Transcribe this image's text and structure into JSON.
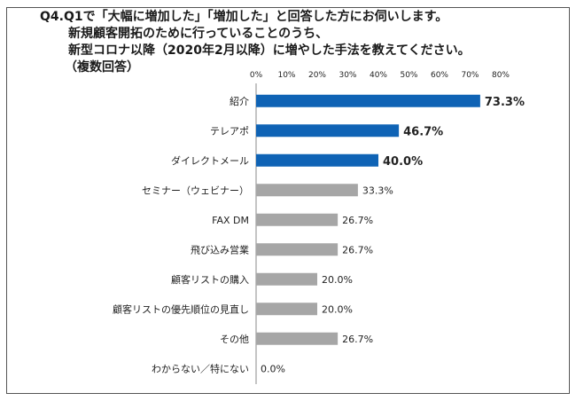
{
  "chart_data": {
    "type": "bar",
    "orientation": "horizontal",
    "title_lines": [
      "Q4.Q1で「大幅に増加した」「増加した」と回答した方にお伺いします。",
      "新規顧客開拓のために行っていることのうち、",
      "新型コロナ以降（2020年2月以降）に増やした手法を教えてください。",
      "（複数回答）"
    ],
    "categories": [
      "紹介",
      "テレアポ",
      "ダイレクトメール",
      "セミナー（ウェビナー）",
      "FAX DM",
      "飛び込み営業",
      "顧客リストの購入",
      "顧客リストの優先順位の見直し",
      "その他",
      "わからない／特にない"
    ],
    "values": [
      73.3,
      46.7,
      40.0,
      33.3,
      26.7,
      26.7,
      20.0,
      20.0,
      26.7,
      0.0
    ],
    "value_labels": [
      "73.3%",
      "46.7%",
      "40.0%",
      "33.3%",
      "26.7%",
      "26.7%",
      "20.0%",
      "20.0%",
      "26.7%",
      "0.0%"
    ],
    "highlighted": [
      true,
      true,
      true,
      false,
      false,
      false,
      false,
      false,
      false,
      false
    ],
    "xticks": [
      "0%",
      "10%",
      "20%",
      "30%",
      "40%",
      "50%",
      "60%",
      "70%",
      "80%"
    ],
    "xlim": [
      0,
      80
    ],
    "grid": false,
    "colors": {
      "highlight": "#0f63b5",
      "normal": "#a6a6a6",
      "axis": "#888888"
    }
  }
}
